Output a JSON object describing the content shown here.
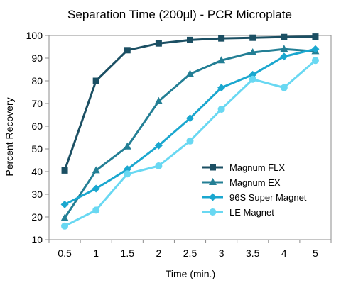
{
  "chart_data": {
    "type": "line",
    "title": "Separation Time (200µl) - PCR Microplate",
    "xlabel": "Time (min.)",
    "ylabel": "Percent Recovery",
    "x": [
      0.5,
      1,
      1.5,
      2,
      2.5,
      3,
      3.5,
      4,
      5
    ],
    "x_tick_labels": [
      "0.5",
      "1",
      "1.5",
      "2",
      "2.5",
      "3",
      "3.5",
      "4",
      "5"
    ],
    "ylim": [
      10,
      100
    ],
    "y_ticks": [
      10,
      20,
      30,
      40,
      50,
      60,
      70,
      80,
      90,
      100
    ],
    "grid": false,
    "legend_position": "lower-right",
    "series": [
      {
        "name": "Magnum FLX",
        "color": "#1b4f63",
        "marker": "square",
        "values": [
          40.5,
          80,
          93.5,
          96.5,
          98,
          98.7,
          99,
          99.3,
          99.5
        ]
      },
      {
        "name": "Magnum EX",
        "color": "#237f95",
        "marker": "triangle",
        "values": [
          19.5,
          40.5,
          51,
          71,
          83,
          89,
          92.5,
          94,
          93
        ]
      },
      {
        "name": "96S Super Magnet",
        "color": "#1aa7cf",
        "marker": "diamond",
        "values": [
          25.5,
          32.5,
          41,
          51.5,
          63.5,
          77,
          82.7,
          90.7,
          94
        ]
      },
      {
        "name": "LE Magnet",
        "color": "#69d8f2",
        "marker": "circle",
        "values": [
          16,
          23,
          39,
          42.5,
          53.5,
          67.5,
          80.7,
          77,
          89
        ]
      }
    ]
  }
}
